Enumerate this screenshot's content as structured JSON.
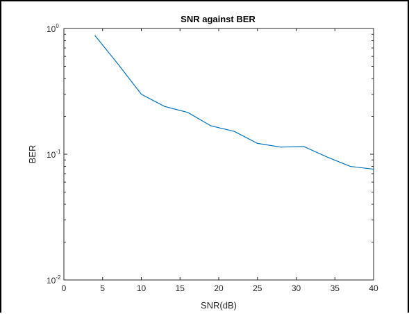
{
  "chart_data": {
    "type": "line",
    "title": "SNR against BER",
    "xlabel": "SNR(dB)",
    "ylabel": "BER",
    "xlim": [
      0,
      40
    ],
    "ylim": [
      0.01,
      1
    ],
    "yscale": "log",
    "grid": false,
    "line_color": "#0072BD",
    "x_ticks": [
      0,
      5,
      10,
      15,
      20,
      25,
      30,
      35,
      40
    ],
    "y_ticks": [
      {
        "value": 0.01,
        "base": "10",
        "exp": "-2"
      },
      {
        "value": 0.1,
        "base": "10",
        "exp": "-1"
      },
      {
        "value": 1,
        "base": "10",
        "exp": "0"
      }
    ],
    "series": [
      {
        "x": [
          4,
          7,
          10,
          13,
          16,
          19,
          22,
          25,
          28,
          31,
          34,
          37,
          40
        ],
        "y": [
          0.88,
          0.52,
          0.3,
          0.24,
          0.215,
          0.168,
          0.152,
          0.122,
          0.114,
          0.115,
          0.095,
          0.08,
          0.076
        ]
      }
    ]
  }
}
